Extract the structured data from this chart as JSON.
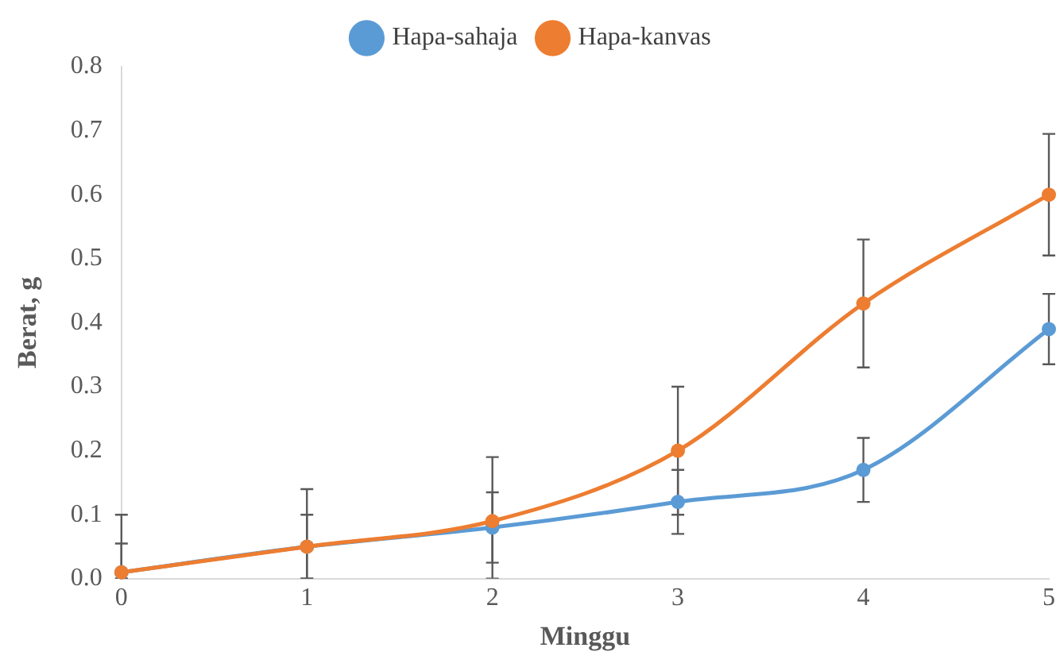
{
  "chart_data": {
    "type": "line",
    "xlabel": "Minggu",
    "ylabel": "Berat, g",
    "x": [
      0,
      1,
      2,
      3,
      4,
      5
    ],
    "series": [
      {
        "name": "Hapa-sahaja",
        "color": "#5b9bd5",
        "values": [
          0.01,
          0.05,
          0.08,
          0.12,
          0.17,
          0.39
        ],
        "errors": [
          [
            0,
            0.055
          ],
          0.05,
          0.055,
          0.05,
          0.05,
          0.055
        ]
      },
      {
        "name": "Hapa-kanvas",
        "color": "#ed7d31",
        "values": [
          0.01,
          0.05,
          0.09,
          0.2,
          0.43,
          0.6
        ],
        "errors": [
          [
            0,
            0.1
          ],
          [
            0,
            0.14
          ],
          [
            0,
            0.19
          ],
          0.1,
          0.1,
          0.095
        ]
      }
    ],
    "xlim": [
      0,
      5
    ],
    "xticks": [
      0,
      1,
      2,
      3,
      4,
      5
    ],
    "ylim": [
      0,
      0.8
    ],
    "yticks": [
      {
        "value": 0,
        "label": "0.0"
      },
      0.1,
      0.2,
      0.3,
      0.4,
      0.5,
      0.6,
      0.7,
      0.8
    ],
    "grid": false,
    "legend": "top",
    "marker": "circle",
    "line_style": "solid"
  }
}
